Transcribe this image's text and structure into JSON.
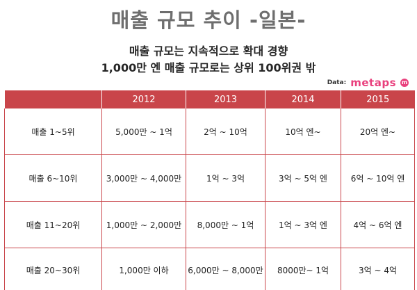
{
  "title": "매출 규모 추이 -일본-",
  "subtitle_line1": "매출 규모는 지속적으로 확대 경향",
  "subtitle_line2": "1,000만 엔 매출 규모로는 상위 100위권 밖",
  "source": {
    "label": "Data:",
    "logo_text": "metaps",
    "logo_mark": "m"
  },
  "colors": {
    "header_bg": "#c9454a",
    "title": "#6e6e6e",
    "logo": "#e9407d"
  },
  "table": {
    "columns": [
      "",
      "2012",
      "2013",
      "2014",
      "2015"
    ],
    "rows": [
      [
        "매출 1~5위",
        "5,000만 ~ 1억",
        "2억 ~ 10억",
        "10억 엔~",
        "20억 엔~"
      ],
      [
        "매출 6~10위",
        "3,000만 ~ 4,000만",
        "1억 ~ 3억",
        "3억 ~ 5억 엔",
        "6억 ~ 10억 엔"
      ],
      [
        "매출 11~20위",
        "1,000만 ~ 2,000만",
        "8,000만 ~ 1억",
        "1억 ~ 3억 엔",
        "4억 ~ 6억 엔"
      ],
      [
        "매출 20~30위",
        "1,000만 이하",
        "6,000만 ~ 8,000만",
        "8000만~ 1억",
        "3억 ~ 4억"
      ]
    ]
  }
}
